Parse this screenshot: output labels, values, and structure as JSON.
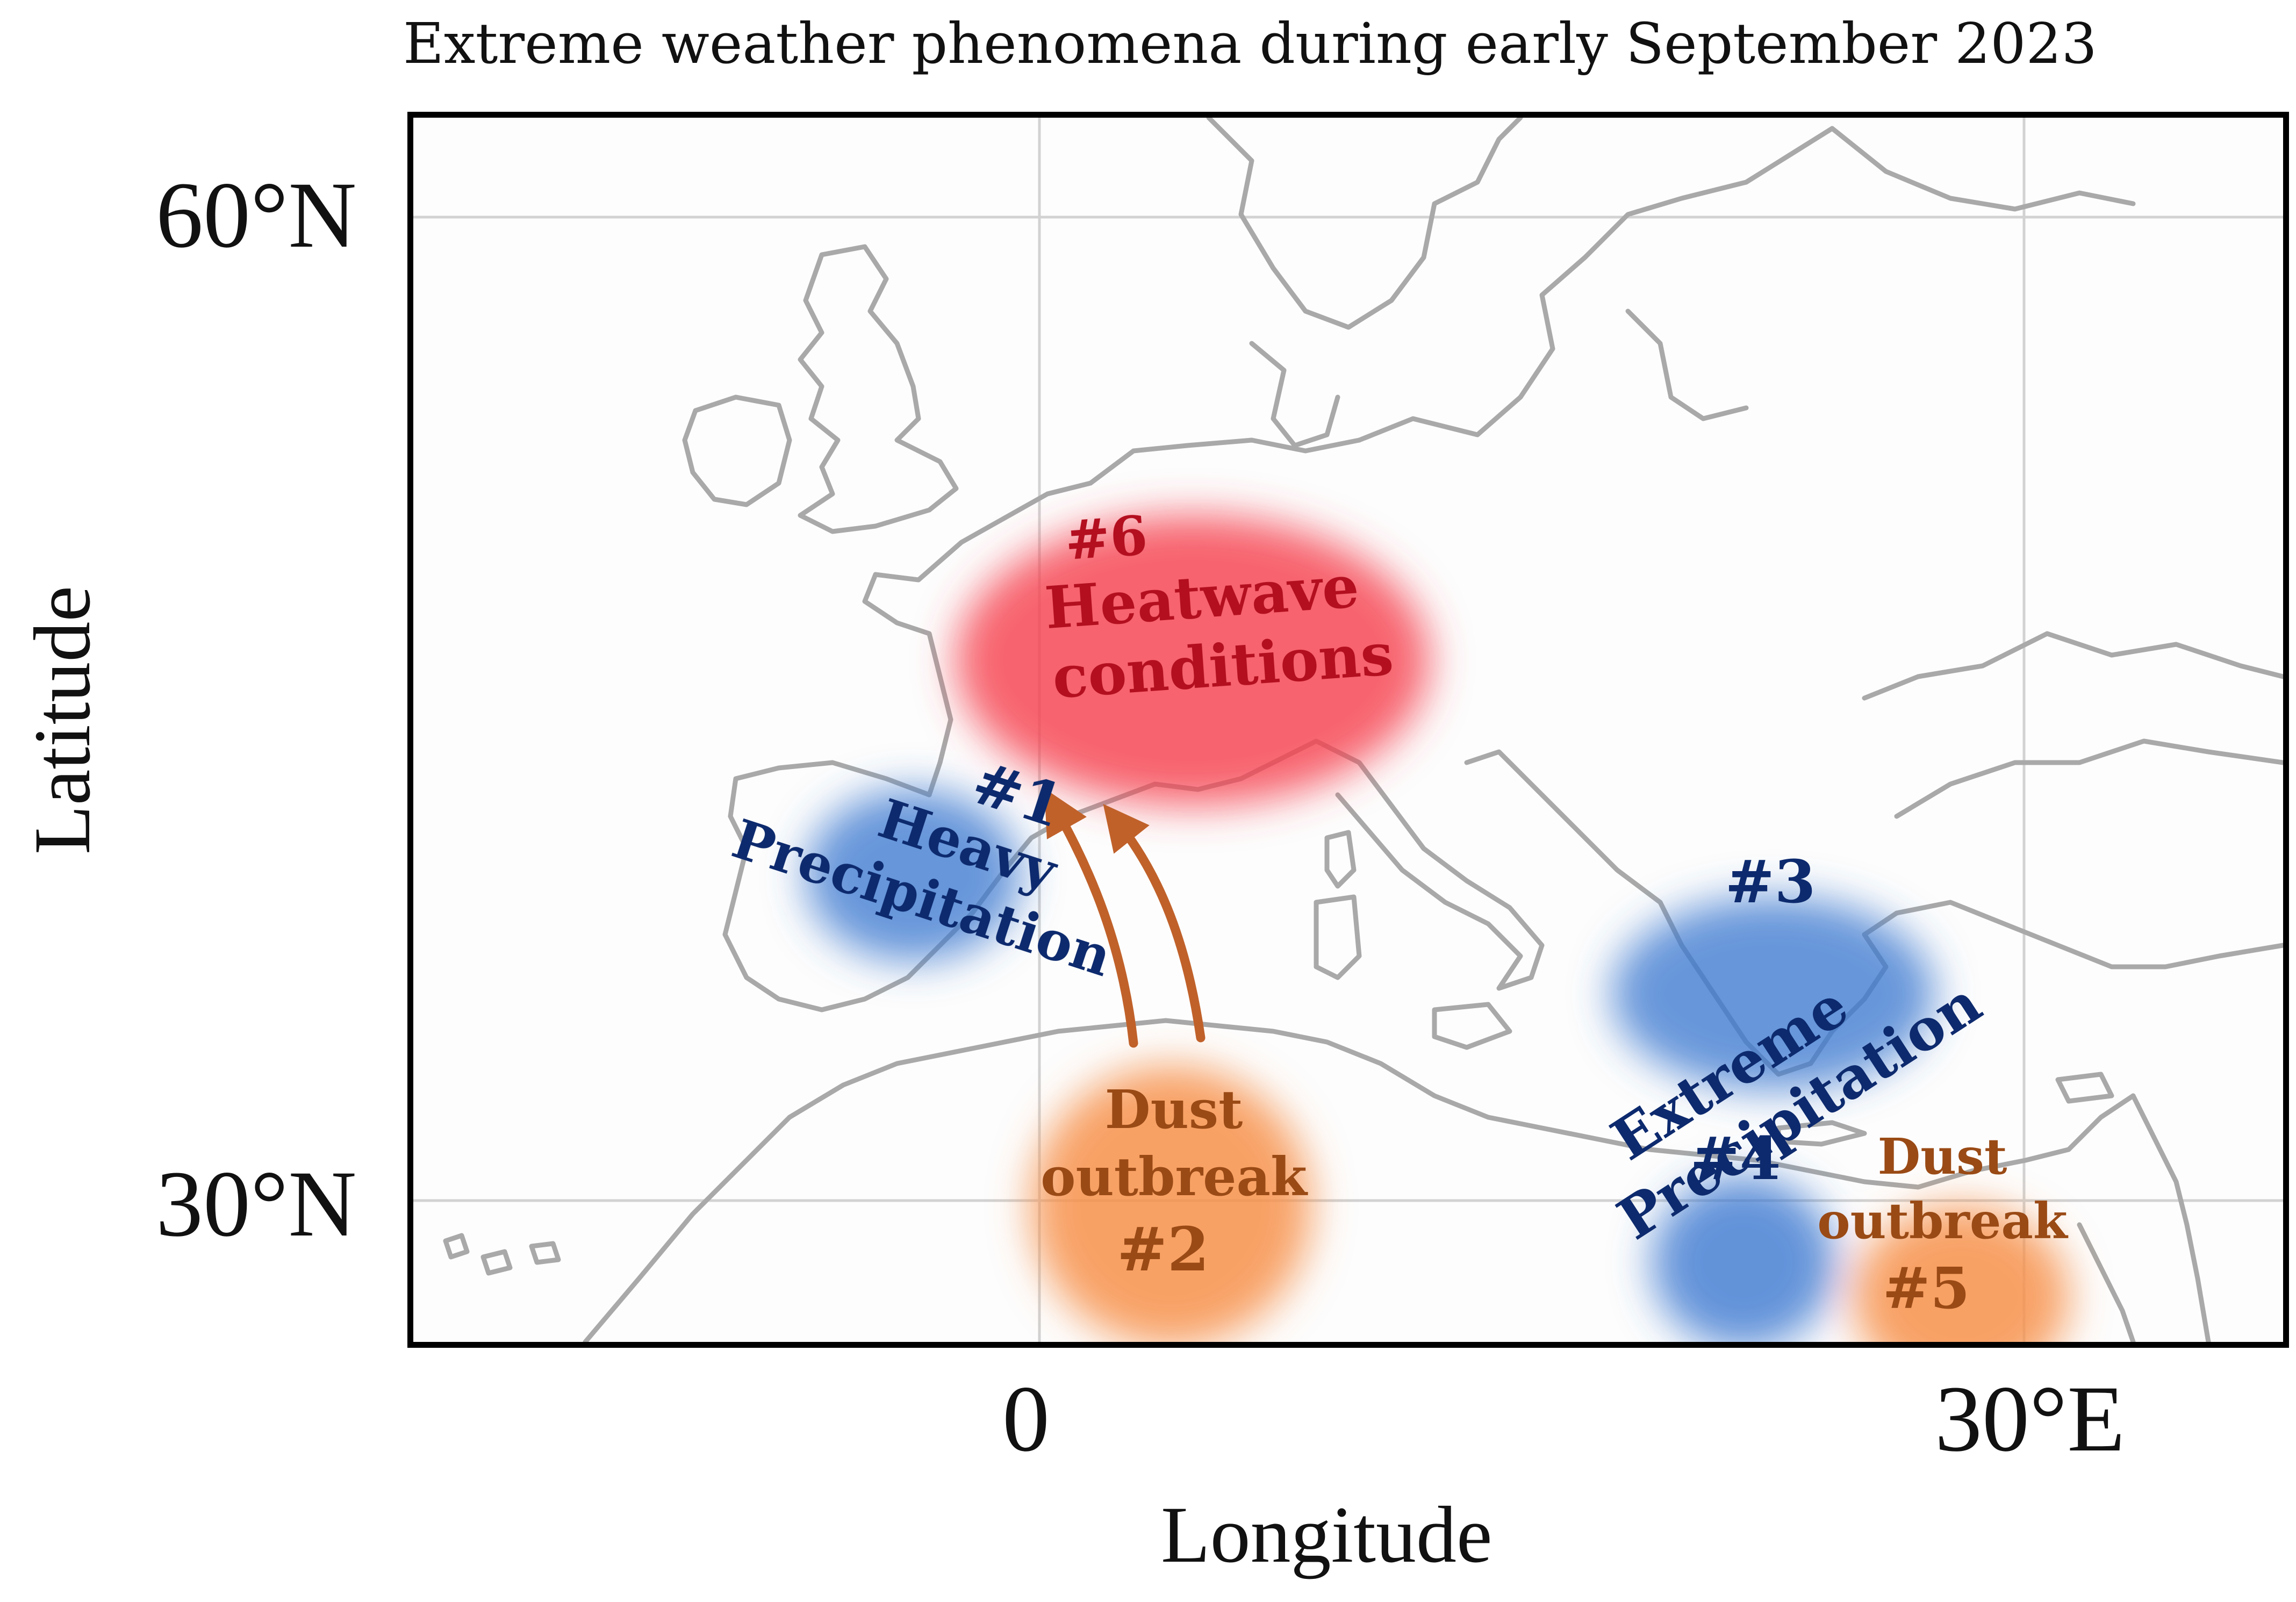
{
  "title": "Extreme weather phenomena during early September 2023",
  "axes": {
    "xlabel": "Longitude",
    "ylabel": "Latitude",
    "lat_ticks": [
      {
        "label": "60°N",
        "value": 60
      },
      {
        "label": "30°N",
        "value": 30
      }
    ],
    "lon_ticks": [
      {
        "label": "0",
        "value": 0
      },
      {
        "label": "30°E",
        "value": 30
      }
    ],
    "gridlines": true
  },
  "colors": {
    "heatwave": "#f5414e",
    "heatwave_text": "#b30f1f",
    "precipitation": "#3b78d0",
    "precipitation_text": "#0d2a6e",
    "dust": "#f7904a",
    "dust_text": "#9a4a15",
    "arrow": "#c0612a",
    "coastline": "#a9a9a9",
    "grid": "#d2d2d2"
  },
  "events": [
    {
      "id": "1",
      "number": "#1",
      "lines": [
        "Heavy",
        "Precipitation"
      ],
      "kind": "precipitation"
    },
    {
      "id": "2",
      "number": "#2",
      "lines": [
        "Dust",
        "outbreak"
      ],
      "kind": "dust"
    },
    {
      "id": "3",
      "number": "#3",
      "lines": [
        "Extreme",
        "Precipitation"
      ],
      "kind": "precipitation"
    },
    {
      "id": "4",
      "number": "#4",
      "lines": [],
      "kind": "precipitation"
    },
    {
      "id": "5",
      "number": "#5",
      "lines": [
        "Dust",
        "outbreak"
      ],
      "kind": "dust"
    },
    {
      "id": "6",
      "number": "#6",
      "lines": [
        "Heatwave",
        "conditions"
      ],
      "kind": "heatwave"
    }
  ]
}
